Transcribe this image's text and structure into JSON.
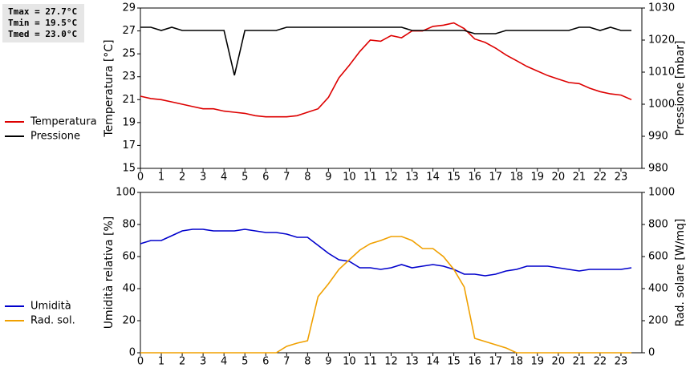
{
  "chart_data": [
    {
      "type": "line",
      "annotations": [
        "Tmax = 27.7°C",
        "Tmin = 19.5°C",
        "Tmed = 23.0°C"
      ],
      "ylabel": "Temperatura [°C]",
      "y2label": "Pressione [mbar]",
      "x": [
        0,
        0.5,
        1,
        1.5,
        2,
        2.5,
        3,
        3.5,
        4,
        4.5,
        5,
        5.5,
        6,
        6.5,
        7,
        7.5,
        8,
        8.5,
        9,
        9.5,
        10,
        10.5,
        11,
        11.5,
        12,
        12.5,
        13,
        13.5,
        14,
        14.5,
        15,
        15.5,
        16,
        16.5,
        17,
        17.5,
        18,
        18.5,
        19,
        19.5,
        20,
        20.5,
        21,
        21.5,
        22,
        22.5,
        23,
        23.5
      ],
      "xlim": [
        0,
        24
      ],
      "xticks": [
        0,
        1,
        2,
        3,
        4,
        5,
        6,
        7,
        8,
        9,
        10,
        11,
        12,
        13,
        14,
        15,
        16,
        17,
        18,
        19,
        20,
        21,
        22,
        23
      ],
      "ylim": [
        15,
        29
      ],
      "yticks": [
        15,
        17,
        19,
        21,
        23,
        25,
        27,
        29
      ],
      "y2lim": [
        980,
        1030
      ],
      "y2ticks": [
        980,
        990,
        1000,
        1010,
        1020,
        1030
      ],
      "grid": false,
      "legend": "left",
      "series": [
        {
          "name": "Temperatura",
          "color": "#dd0000",
          "values": [
            21.3,
            21.1,
            21.0,
            20.8,
            20.6,
            20.4,
            20.2,
            20.2,
            20.0,
            19.9,
            19.8,
            19.6,
            19.5,
            19.5,
            19.5,
            19.6,
            19.9,
            20.2,
            21.2,
            22.9,
            24.0,
            25.2,
            26.2,
            26.1,
            26.6,
            26.4,
            27.0,
            27.0,
            27.4,
            27.5,
            27.7,
            27.2,
            26.3,
            26.0,
            25.5,
            24.9,
            24.4,
            23.9,
            23.5,
            23.1,
            22.8,
            22.5,
            22.4,
            22.0,
            21.7,
            21.5,
            21.4,
            21.0
          ]
        },
        {
          "name": "Pressione",
          "color": "#000000",
          "axis": "y2",
          "values": [
            1024,
            1024,
            1023,
            1024,
            1023,
            1023,
            1023,
            1023,
            1023,
            1009,
            1023,
            1023,
            1023,
            1023,
            1024,
            1024,
            1024,
            1024,
            1024,
            1024,
            1024,
            1024,
            1024,
            1024,
            1024,
            1024,
            1023,
            1023,
            1023,
            1023,
            1023,
            1023,
            1022,
            1022,
            1022,
            1023,
            1023,
            1023,
            1023,
            1023,
            1023,
            1023,
            1024,
            1024,
            1023,
            1024,
            1023,
            1023
          ]
        }
      ]
    },
    {
      "type": "line",
      "ylabel": "Umidità relativa [%]",
      "y2label": "Rad. solare [W/mq]",
      "x": [
        0,
        0.5,
        1,
        1.5,
        2,
        2.5,
        3,
        3.5,
        4,
        4.5,
        5,
        5.5,
        6,
        6.5,
        7,
        7.5,
        8,
        8.5,
        9,
        9.5,
        10,
        10.5,
        11,
        11.5,
        12,
        12.5,
        13,
        13.5,
        14,
        14.5,
        15,
        15.5,
        16,
        16.5,
        17,
        17.5,
        18,
        18.5,
        19,
        19.5,
        20,
        20.5,
        21,
        21.5,
        22,
        22.5,
        23,
        23.5
      ],
      "xlim": [
        0,
        24
      ],
      "xticks": [
        0,
        1,
        2,
        3,
        4,
        5,
        6,
        7,
        8,
        9,
        10,
        11,
        12,
        13,
        14,
        15,
        16,
        17,
        18,
        19,
        20,
        21,
        22,
        23
      ],
      "ylim": [
        0,
        100
      ],
      "yticks": [
        0,
        20,
        40,
        60,
        80,
        100
      ],
      "y2lim": [
        0,
        1000
      ],
      "y2ticks": [
        0,
        200,
        400,
        600,
        800,
        1000
      ],
      "grid": false,
      "legend": "left",
      "series": [
        {
          "name": "Umidità",
          "color": "#0000cc",
          "values": [
            68,
            70,
            70,
            73,
            76,
            77,
            77,
            76,
            76,
            76,
            77,
            76,
            75,
            75,
            74,
            72,
            72,
            67,
            62,
            58,
            57,
            53,
            53,
            52,
            53,
            55,
            53,
            54,
            55,
            54,
            52,
            49,
            49,
            48,
            49,
            51,
            52,
            54,
            54,
            54,
            53,
            52,
            51,
            52,
            52,
            52,
            52,
            53
          ]
        },
        {
          "name": "Rad. sol.",
          "color": "#f0a000",
          "axis": "y2",
          "values": [
            0,
            0,
            0,
            0,
            0,
            0,
            0,
            0,
            0,
            0,
            0,
            0,
            0,
            0,
            40,
            60,
            75,
            350,
            430,
            520,
            580,
            640,
            680,
            700,
            725,
            725,
            700,
            650,
            650,
            600,
            520,
            410,
            90,
            70,
            50,
            30,
            0,
            0,
            0,
            0,
            0,
            0,
            0,
            0,
            0,
            0,
            0,
            0
          ]
        }
      ]
    }
  ]
}
